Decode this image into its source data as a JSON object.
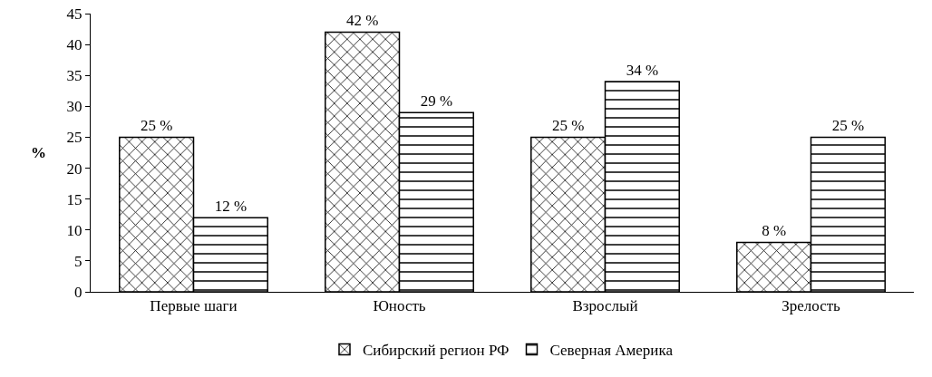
{
  "chart_data": {
    "type": "bar",
    "ylabel": "%",
    "categories": [
      "Первые шаги",
      "Юность",
      "Взрослый",
      "Зрелость"
    ],
    "series": [
      {
        "name": "Сибирский регион РФ",
        "color": "#000000",
        "values": [
          25,
          42,
          25,
          8
        ],
        "value_labels": [
          "25 %",
          "42 %",
          "25 %",
          "8 %"
        ]
      },
      {
        "name": "Северная Америка",
        "color": "#000000",
        "values": [
          12,
          29,
          34,
          25
        ],
        "value_labels": [
          "12 %",
          "29 %",
          "34 %",
          "25 %"
        ]
      }
    ],
    "ylim": [
      0,
      45
    ],
    "yticks": [
      0,
      5,
      10,
      15,
      20,
      25,
      30,
      35,
      40,
      45
    ],
    "grid": false,
    "legend": "bottom"
  }
}
